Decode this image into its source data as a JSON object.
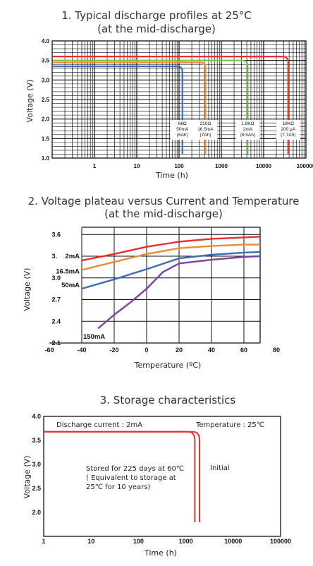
{
  "colors": {
    "red": "#e8302e",
    "orange": "#f08a34",
    "green": "#7cc24e",
    "blue": "#3a6db3",
    "purple": "#8040a0",
    "grid": "#111111"
  },
  "chart_data": [
    {
      "type": "line",
      "title": "1. Typical discharge profiles at 25°C",
      "subtitle": "(at the mid-discharge)",
      "xlabel": "Time (h)",
      "ylabel": "Voltage (V)",
      "xscale": "log",
      "xlim": [
        0.1,
        100000
      ],
      "ylim": [
        1.0,
        4.0
      ],
      "xticks": [
        "1",
        "10",
        "100",
        "1000",
        "10000",
        "100000"
      ],
      "yticks": [
        "1.0",
        "1.5",
        "2.0",
        "2.5",
        "3.0",
        "3.5",
        "4.0"
      ],
      "grid": true,
      "series": [
        {
          "name": "66Ω 50mA (6Ah)",
          "lines": [
            "66Ω",
            "50mA",
            "(6Ah)"
          ],
          "color": "blue",
          "plateau": 3.35,
          "end_time": 120,
          "label_x": 120
        },
        {
          "name": "210Ω 16.5mA (7Ah)",
          "lines": [
            "210Ω",
            "16.5mA",
            "(7Ah)"
          ],
          "color": "orange",
          "plateau": 3.45,
          "end_time": 420,
          "label_x": 420
        },
        {
          "name": "1.8KΩ 2mA (8.5Ah)",
          "lines": [
            "1.8KΩ",
            "2mA",
            "(8.5Ah)"
          ],
          "color": "green",
          "plateau": 3.5,
          "end_time": 4200,
          "label_x": 4200
        },
        {
          "name": "18KΩ 200 μA (7.7Ah)",
          "lines": [
            "18KΩ",
            "200 μA",
            "(7.7Ah)"
          ],
          "color": "red",
          "plateau": 3.6,
          "end_time": 38000,
          "label_x": 38000
        }
      ]
    },
    {
      "type": "line",
      "title": "2. Voltage plateau versus Current and Temperature",
      "subtitle": "(at the mid-discharge)",
      "xlabel": "Temperature (ºC)",
      "ylabel": "Voltage (V)",
      "xlim": [
        -60,
        80
      ],
      "ylim": [
        2.1,
        3.7
      ],
      "xticks": [
        "-60",
        "-40",
        "-20",
        "0",
        "20",
        "40",
        "60",
        "80"
      ],
      "yticks": [
        "2.1",
        "2.4",
        "2.7",
        "3.0",
        "3.3",
        "3.6"
      ],
      "grid": true,
      "series": [
        {
          "name": "2mA",
          "color": "red",
          "x": [
            -40,
            -20,
            0,
            20,
            40,
            60,
            70
          ],
          "y": [
            3.24,
            3.33,
            3.43,
            3.5,
            3.54,
            3.56,
            3.57
          ]
        },
        {
          "name": "16.5mA",
          "color": "orange",
          "x": [
            -40,
            -20,
            0,
            20,
            40,
            60,
            70
          ],
          "y": [
            3.11,
            3.22,
            3.33,
            3.41,
            3.44,
            3.46,
            3.46
          ]
        },
        {
          "name": "50mA",
          "color": "blue",
          "x": [
            -40,
            -20,
            0,
            20,
            40,
            60,
            70
          ],
          "y": [
            2.85,
            2.98,
            3.12,
            3.27,
            3.32,
            3.35,
            3.36
          ]
        },
        {
          "name": "150mA",
          "color": "purple",
          "x": [
            -30,
            -20,
            -10,
            0,
            10,
            20,
            40,
            60,
            70
          ],
          "y": [
            2.3,
            2.49,
            2.66,
            2.85,
            3.08,
            3.2,
            3.25,
            3.29,
            3.3
          ]
        }
      ]
    },
    {
      "type": "line",
      "title": "3. Storage characteristics",
      "xlabel": "Time (h)",
      "ylabel": "Voltage (V)",
      "xscale": "log",
      "xlim": [
        1,
        100000
      ],
      "ylim": [
        1.5,
        4.0
      ],
      "xticks": [
        "1",
        "10",
        "100",
        "1000",
        "10000",
        "100000"
      ],
      "yticks": [
        "2.0",
        "2.5",
        "3.0",
        "3.5",
        "4.0"
      ],
      "grid": false,
      "annotations": {
        "current": "Discharge current : 2mA",
        "temperature": "Temperature : 25℃",
        "stored1": "Stored for 225 days at 60℃",
        "stored2": "( Equivalent to storage at",
        "stored3": "25℃ for 10 years)",
        "initial": "Initial"
      },
      "series": [
        {
          "name": "Stored for 225 days at 60℃",
          "color": "red",
          "plateau": 3.68,
          "end_time": 1550
        },
        {
          "name": "Initial",
          "color": "red",
          "plateau": 3.68,
          "end_time": 1950
        }
      ]
    }
  ]
}
